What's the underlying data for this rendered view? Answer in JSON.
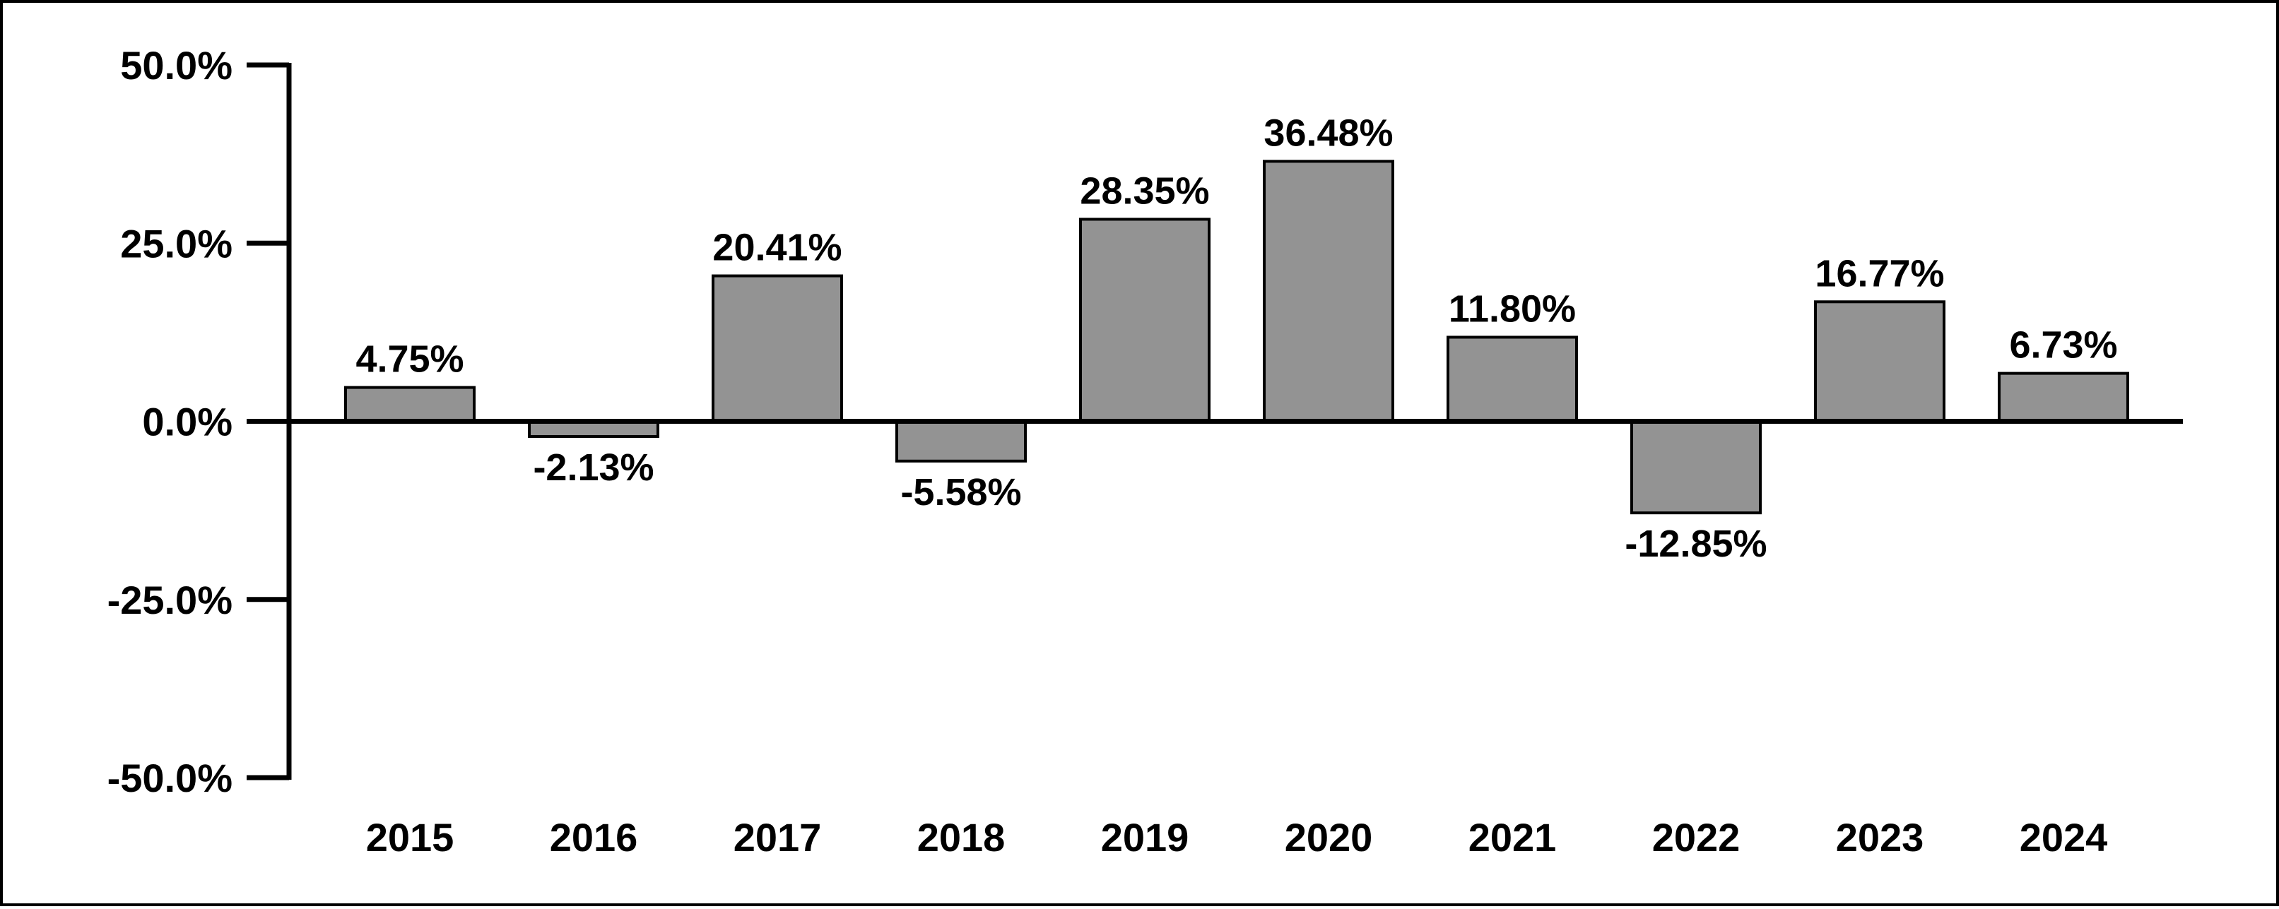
{
  "chart_data": {
    "type": "bar",
    "title": "",
    "xlabel": "",
    "ylabel": "",
    "categories": [
      "2015",
      "2016",
      "2017",
      "2018",
      "2019",
      "2020",
      "2021",
      "2022",
      "2023",
      "2024"
    ],
    "values": [
      4.75,
      -2.13,
      20.41,
      -5.58,
      28.35,
      36.48,
      11.8,
      -12.85,
      16.77,
      6.73
    ],
    "data_labels": [
      "4.75%",
      "-2.13%",
      "20.41%",
      "-5.58%",
      "28.35%",
      "36.48%",
      "11.80%",
      "-12.85%",
      "16.77%",
      "6.73%"
    ],
    "ylim": [
      -50,
      50
    ],
    "yticks": [
      50,
      25,
      0,
      -25,
      -50
    ],
    "ytick_labels": [
      "50.0%",
      "25.0%",
      "0.0%",
      "-25.0%",
      "-50.0%"
    ],
    "grid": false,
    "legend": "none",
    "colors": {
      "bar_fill": "#939393",
      "bar_stroke": "#000000",
      "axis": "#000000",
      "text": "#000000"
    }
  }
}
